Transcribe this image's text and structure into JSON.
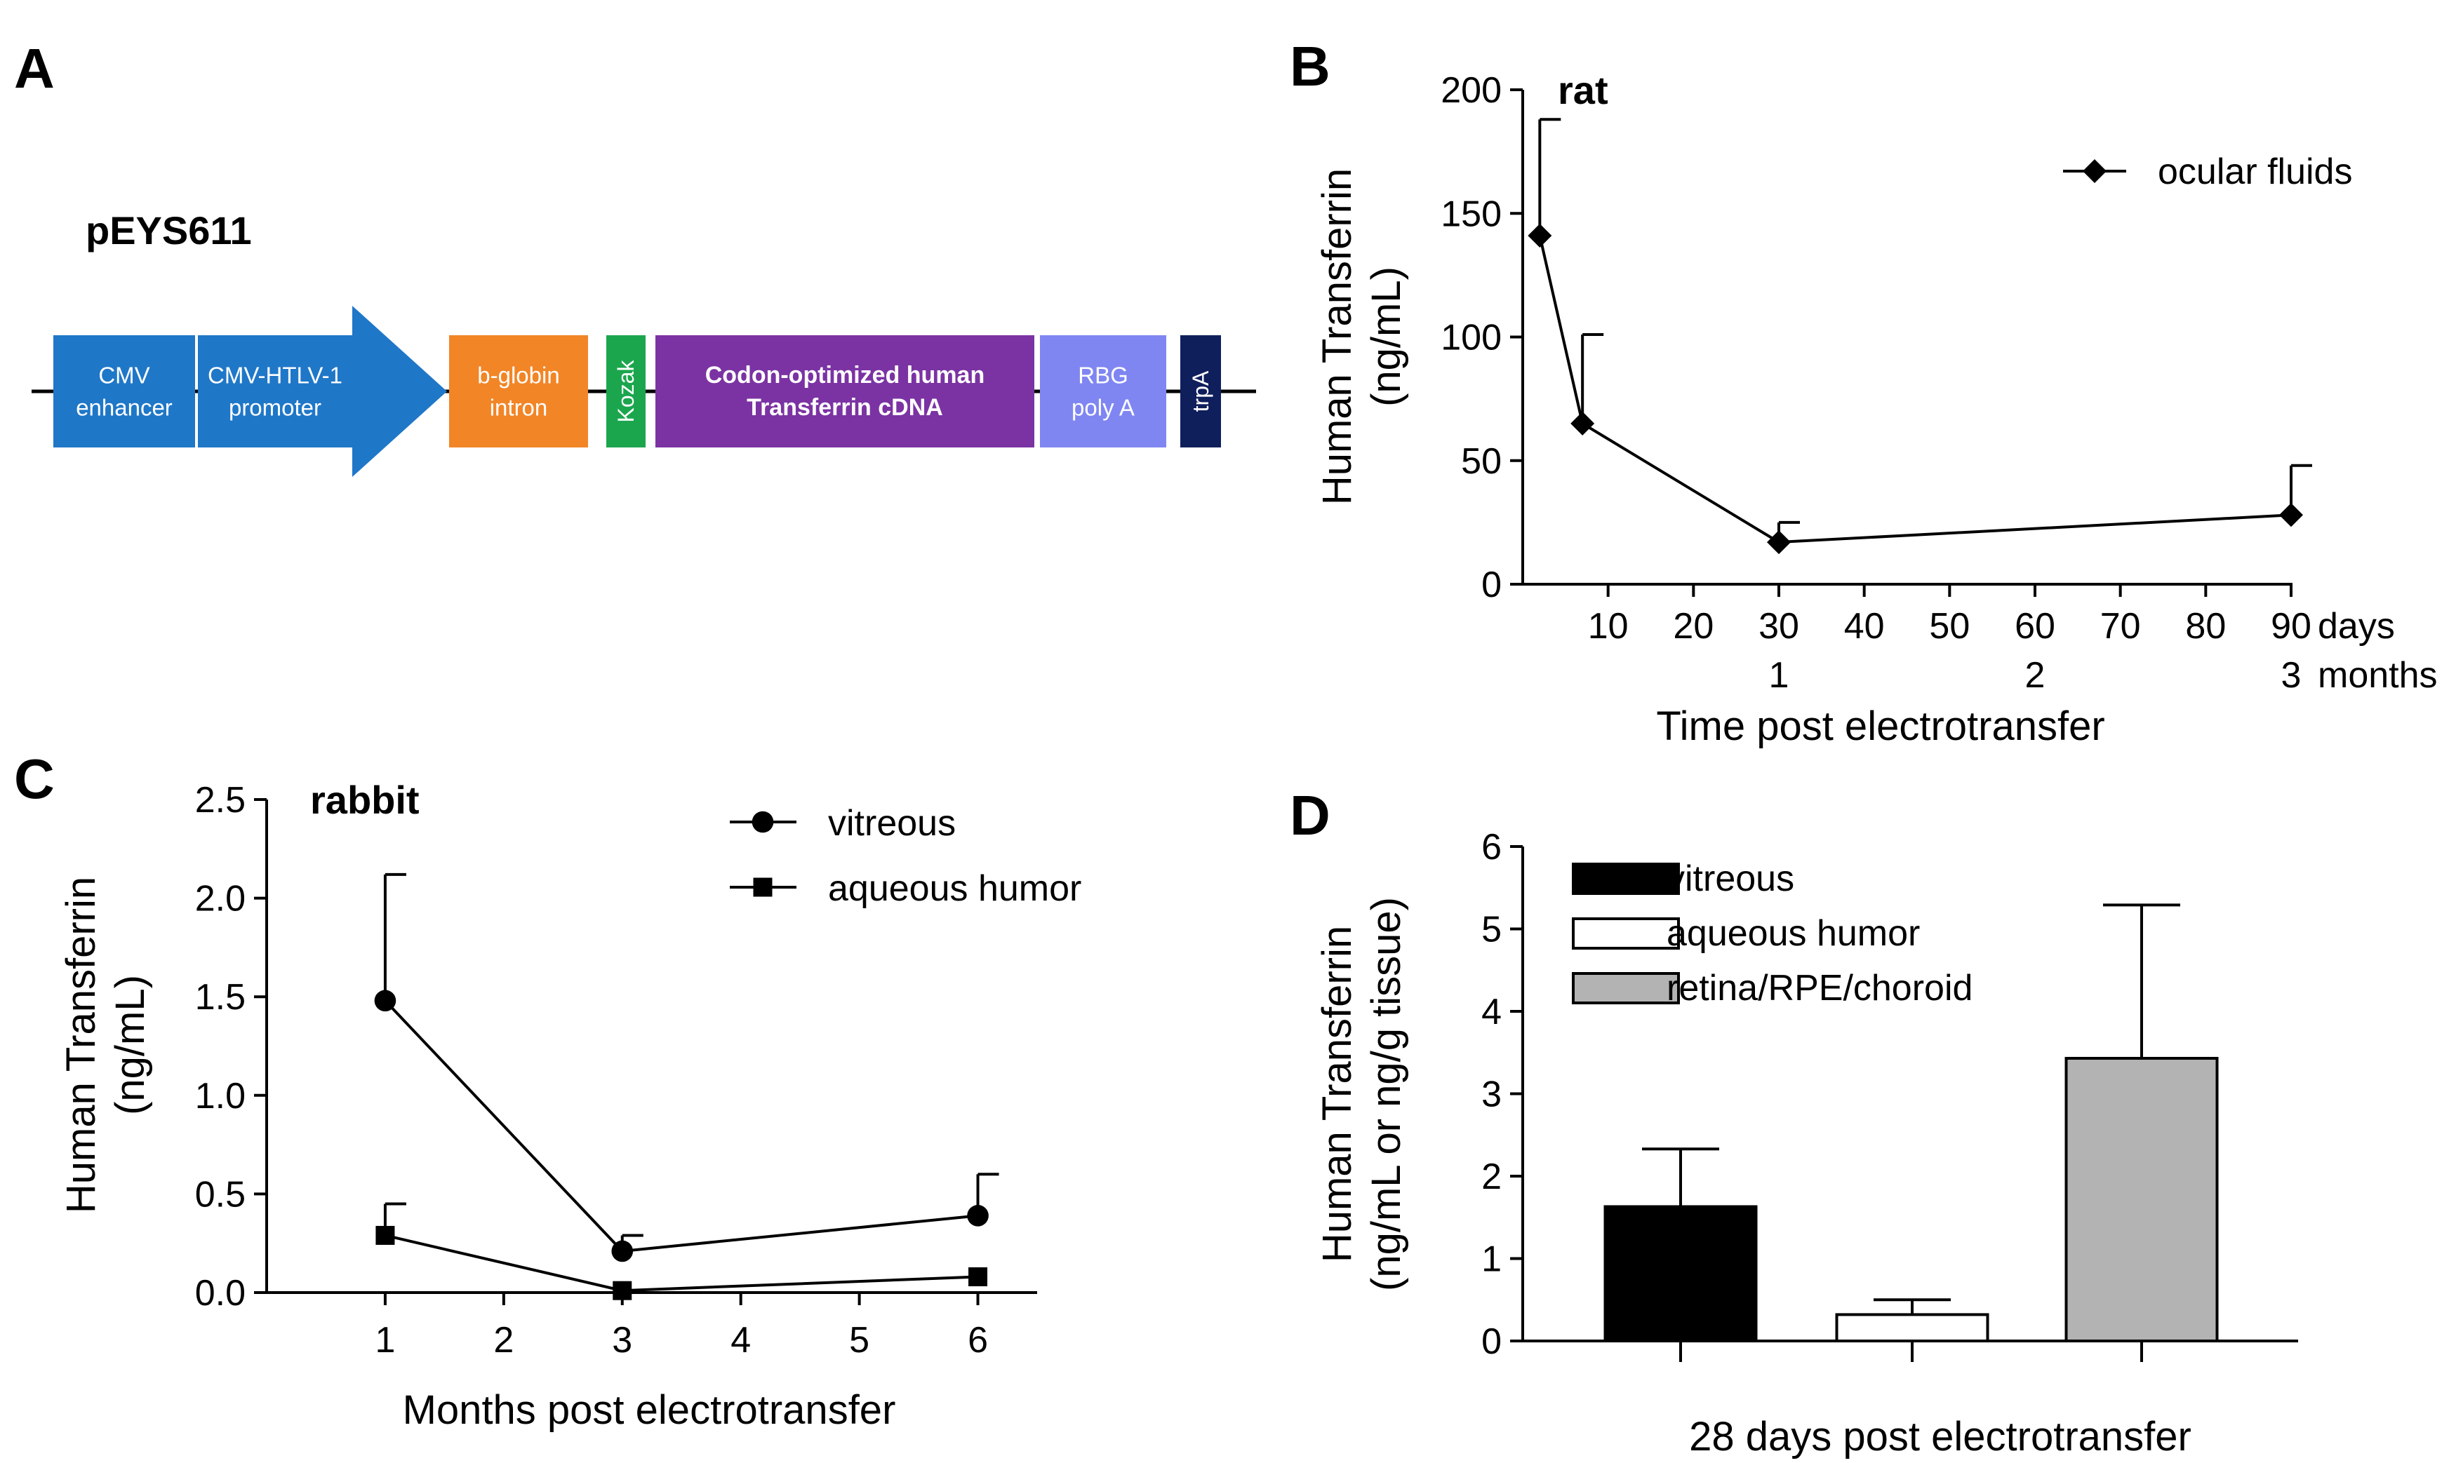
{
  "panel_labels": {
    "a": "A",
    "b": "B",
    "c": "C",
    "d": "D"
  },
  "construct": {
    "name": "pEYS611",
    "elements": [
      {
        "key": "cmv_enhancer",
        "lines": [
          "CMV",
          "enhancer"
        ],
        "color": "#1f77c8"
      },
      {
        "key": "promoter",
        "lines": [
          "CMV-HTLV-1",
          "promoter"
        ],
        "color": "#1f77c8"
      },
      {
        "key": "intron",
        "lines": [
          "b-globin",
          "intron"
        ],
        "color": "#f28526"
      },
      {
        "key": "kozak",
        "lines": [
          "Kozak"
        ],
        "color": "#1ba64e"
      },
      {
        "key": "cdna",
        "lines": [
          "Codon-optimized human",
          "Transferrin cDNA"
        ],
        "color": "#7b33a3"
      },
      {
        "key": "polya",
        "lines": [
          "RBG",
          "poly A"
        ],
        "color": "#7f86f2"
      },
      {
        "key": "trpa",
        "lines": [
          "trpA"
        ],
        "color": "#0f1f5c"
      }
    ]
  },
  "chart_data": [
    {
      "panel": "B",
      "type": "line",
      "title": "rat",
      "ylabel": [
        "Human Transferrin",
        "(ng/mL)"
      ],
      "xlabel": "Time post electrotransfer",
      "ylim": [
        0,
        200
      ],
      "yticks": [
        0,
        50,
        100,
        150,
        200
      ],
      "xlim": [
        0,
        90
      ],
      "xticks": [
        10,
        20,
        30,
        40,
        50,
        60,
        70,
        80,
        90
      ],
      "x_unit": "days",
      "x2_ticks": [
        {
          "x": 30,
          "label": "1"
        },
        {
          "x": 60,
          "label": "2"
        },
        {
          "x": 90,
          "label": "3"
        }
      ],
      "x2_unit": "months",
      "legend_position": "top-right",
      "series": [
        {
          "name": "ocular fluids",
          "marker": "diamond",
          "x": [
            2,
            7,
            30,
            90
          ],
          "y": [
            141,
            65,
            17,
            28
          ],
          "err": [
            47,
            36,
            8,
            20
          ]
        }
      ]
    },
    {
      "panel": "C",
      "type": "line",
      "title": "rabbit",
      "ylabel": [
        "Human Transferrin",
        "(ng/mL)"
      ],
      "xlabel": "Months post electrotransfer",
      "ylim": [
        0,
        2.5
      ],
      "yticks": [
        "0.0",
        "0.5",
        "1.0",
        "1.5",
        "2.0",
        "2.5"
      ],
      "xlim": [
        0,
        6.5
      ],
      "xticks": [
        1,
        2,
        3,
        4,
        5,
        6
      ],
      "legend_position": "top-right",
      "series": [
        {
          "name": "vitreous",
          "marker": "circle",
          "x": [
            1,
            3,
            6
          ],
          "y": [
            1.48,
            0.21,
            0.39
          ],
          "err": [
            0.64,
            0.08,
            0.21
          ]
        },
        {
          "name": "aqueous humor",
          "marker": "square",
          "x": [
            1,
            3,
            6
          ],
          "y": [
            0.29,
            0.01,
            0.08
          ],
          "err": [
            0.16,
            0.0,
            0.0
          ]
        }
      ]
    },
    {
      "panel": "D",
      "type": "bar",
      "ylabel": [
        "Human Transferrin",
        "(ng/mL or ng/g tissue)"
      ],
      "xlabel": "28 days post electrotransfer",
      "ylim": [
        0,
        6
      ],
      "yticks": [
        0,
        1,
        2,
        3,
        4,
        5,
        6
      ],
      "legend_position": "top-left",
      "series": [
        {
          "name": "vitreous",
          "value": 1.63,
          "err": 0.7,
          "color": "#000000"
        },
        {
          "name": "aqueous humor",
          "value": 0.32,
          "err": 0.18,
          "color": "#ffffff"
        },
        {
          "name": "retina/RPE/choroid",
          "value": 3.43,
          "err": 1.86,
          "color": "#b3b3b3"
        }
      ]
    }
  ]
}
